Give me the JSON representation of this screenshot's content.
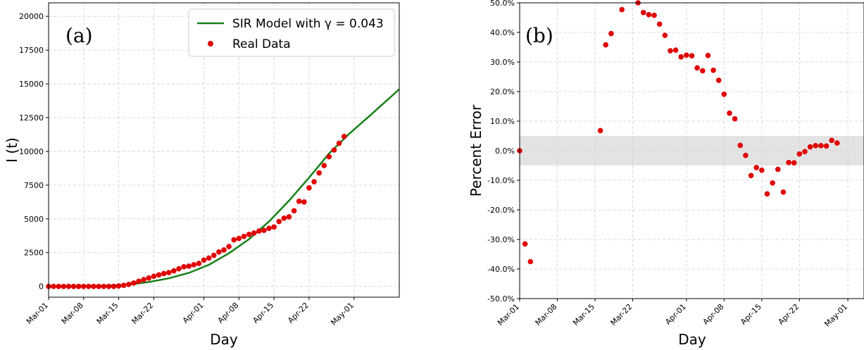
{
  "chart_data": [
    {
      "type": "line",
      "panel_label": "(a)",
      "xlabel": "Day",
      "ylabel": "I (t)",
      "xlim": [
        0,
        70
      ],
      "ylim": [
        -800,
        21000
      ],
      "yticks": [
        0,
        2500,
        5000,
        7500,
        10000,
        12500,
        15000,
        17500,
        20000
      ],
      "xticks": [
        {
          "day": 0,
          "label": "Mar-01"
        },
        {
          "day": 7,
          "label": "Mar-08"
        },
        {
          "day": 14,
          "label": "Mar-15"
        },
        {
          "day": 21,
          "label": "Mar-22"
        },
        {
          "day": 31,
          "label": "Apr-01"
        },
        {
          "day": 38,
          "label": "Apr-08"
        },
        {
          "day": 45,
          "label": "Apr-15"
        },
        {
          "day": 52,
          "label": "Apr-22"
        },
        {
          "day": 61,
          "label": "May-01"
        }
      ],
      "grid": true,
      "legend_position": "top-right",
      "series": [
        {
          "name": "SIR Model with γ = 0.043",
          "type": "line",
          "color": "#158015",
          "x": [
            0,
            10,
            14,
            17,
            20,
            24,
            28,
            32,
            36,
            40,
            44,
            48,
            52,
            56,
            60,
            64,
            70
          ],
          "y": [
            0,
            30,
            90,
            180,
            320,
            600,
            1000,
            1600,
            2450,
            3500,
            4800,
            6350,
            8050,
            9850,
            11300,
            12600,
            14600
          ]
        },
        {
          "name": "Real Data",
          "type": "scatter",
          "color": "#e00000",
          "x": [
            0,
            1,
            2,
            3,
            4,
            5,
            6,
            7,
            8,
            9,
            10,
            11,
            12,
            13,
            14,
            15,
            16,
            17,
            18,
            19,
            20,
            21,
            22,
            23,
            24,
            25,
            26,
            27,
            28,
            29,
            30,
            31,
            32,
            33,
            34,
            35,
            36,
            37,
            38,
            39,
            40,
            41,
            42,
            43,
            44,
            45,
            46,
            47,
            48,
            49,
            50,
            51,
            52,
            53,
            54,
            55,
            56,
            57,
            58,
            59
          ],
          "y": [
            0,
            0,
            0,
            0,
            0,
            0,
            0,
            0,
            0,
            0,
            0,
            0,
            0,
            0,
            30,
            80,
            150,
            250,
            380,
            500,
            620,
            750,
            850,
            950,
            1020,
            1150,
            1300,
            1450,
            1500,
            1600,
            1700,
            1950,
            2100,
            2300,
            2550,
            2700,
            2950,
            3450,
            3550,
            3700,
            3850,
            3950,
            4100,
            4150,
            4300,
            4400,
            4800,
            5050,
            5150,
            5600,
            6300,
            6250,
            7300,
            7750,
            8400,
            8950,
            9600,
            10100,
            10600,
            11100
          ]
        }
      ]
    },
    {
      "type": "scatter",
      "panel_label": "(b)",
      "xlabel": "Day",
      "ylabel": "Percent Error",
      "xlim": [
        0,
        64
      ],
      "ylim": [
        -50,
        50
      ],
      "yticks": [
        -50,
        -40,
        -30,
        -20,
        -10,
        0,
        10,
        20,
        30,
        40,
        50
      ],
      "ytick_labels": [
        "-50.0%",
        "-40.0%",
        "-30.0%",
        "-20.0%",
        "-10.0%",
        "0.0%",
        "10.0%",
        "20.0%",
        "30.0%",
        "40.0%",
        "50.0%"
      ],
      "xticks": [
        {
          "day": 0,
          "label": "Mar-01"
        },
        {
          "day": 7,
          "label": "Mar-08"
        },
        {
          "day": 14,
          "label": "Mar-15"
        },
        {
          "day": 21,
          "label": "Mar-22"
        },
        {
          "day": 31,
          "label": "Apr-01"
        },
        {
          "day": 38,
          "label": "Apr-08"
        },
        {
          "day": 45,
          "label": "Apr-15"
        },
        {
          "day": 52,
          "label": "Apr-22"
        },
        {
          "day": 61,
          "label": "May-01"
        }
      ],
      "grid": true,
      "band": [
        -5,
        5
      ],
      "band_color": "#e3e3e3",
      "series": [
        {
          "type": "scatter",
          "color": "#e00000",
          "x": [
            0,
            1,
            2,
            15,
            16,
            17,
            19,
            22,
            23,
            24,
            25,
            26,
            27,
            28,
            29,
            30,
            31,
            32,
            33,
            34,
            35,
            36,
            37,
            38,
            39,
            40,
            41,
            42,
            43,
            44,
            45,
            46,
            47,
            48,
            49,
            50,
            51,
            52,
            53,
            54,
            55,
            56,
            57,
            58,
            59
          ],
          "y": [
            0,
            -31.5,
            -37.5,
            6.8,
            35.8,
            39.6,
            47.7,
            50,
            46.7,
            46,
            45.8,
            42.8,
            39,
            33.8,
            34,
            31.7,
            32.3,
            32.1,
            28,
            27,
            32.2,
            27.2,
            23.8,
            19.1,
            12.7,
            10.8,
            1.8,
            -1.6,
            -8.4,
            -5.7,
            -6.6,
            -14.6,
            -10.9,
            -6.3,
            -14,
            -4,
            -4.1,
            -1.1,
            -0.3,
            1.3,
            1.7,
            1.7,
            1.6,
            3.5,
            2.6
          ]
        }
      ]
    }
  ]
}
